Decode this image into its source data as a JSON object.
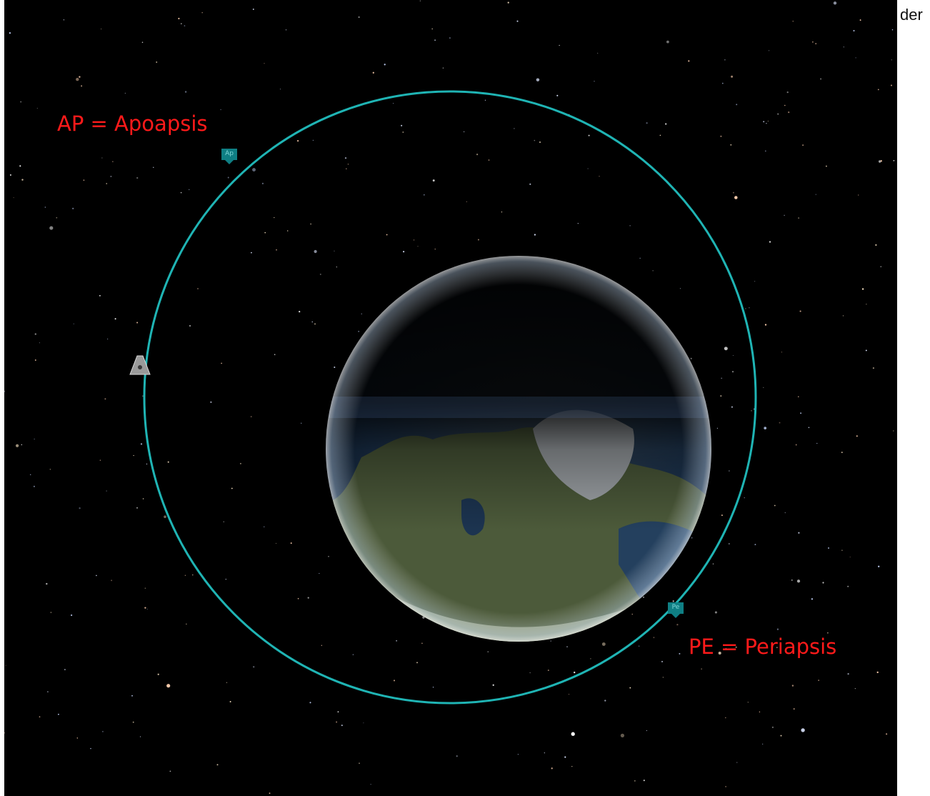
{
  "annotations": {
    "apoapsis": "AP = Apoapsis",
    "periapsis": "PE = Periapsis"
  },
  "markers": {
    "apoapsis": "Ap",
    "periapsis": "Pe"
  },
  "side_text": "der",
  "colors": {
    "orbit": "#1fb4b4",
    "annotation": "#ff1a1a",
    "marker": "#0f7f84",
    "space": "#000000"
  },
  "icons": {
    "vessel": "vessel-icon",
    "planet": "planet-icon"
  }
}
